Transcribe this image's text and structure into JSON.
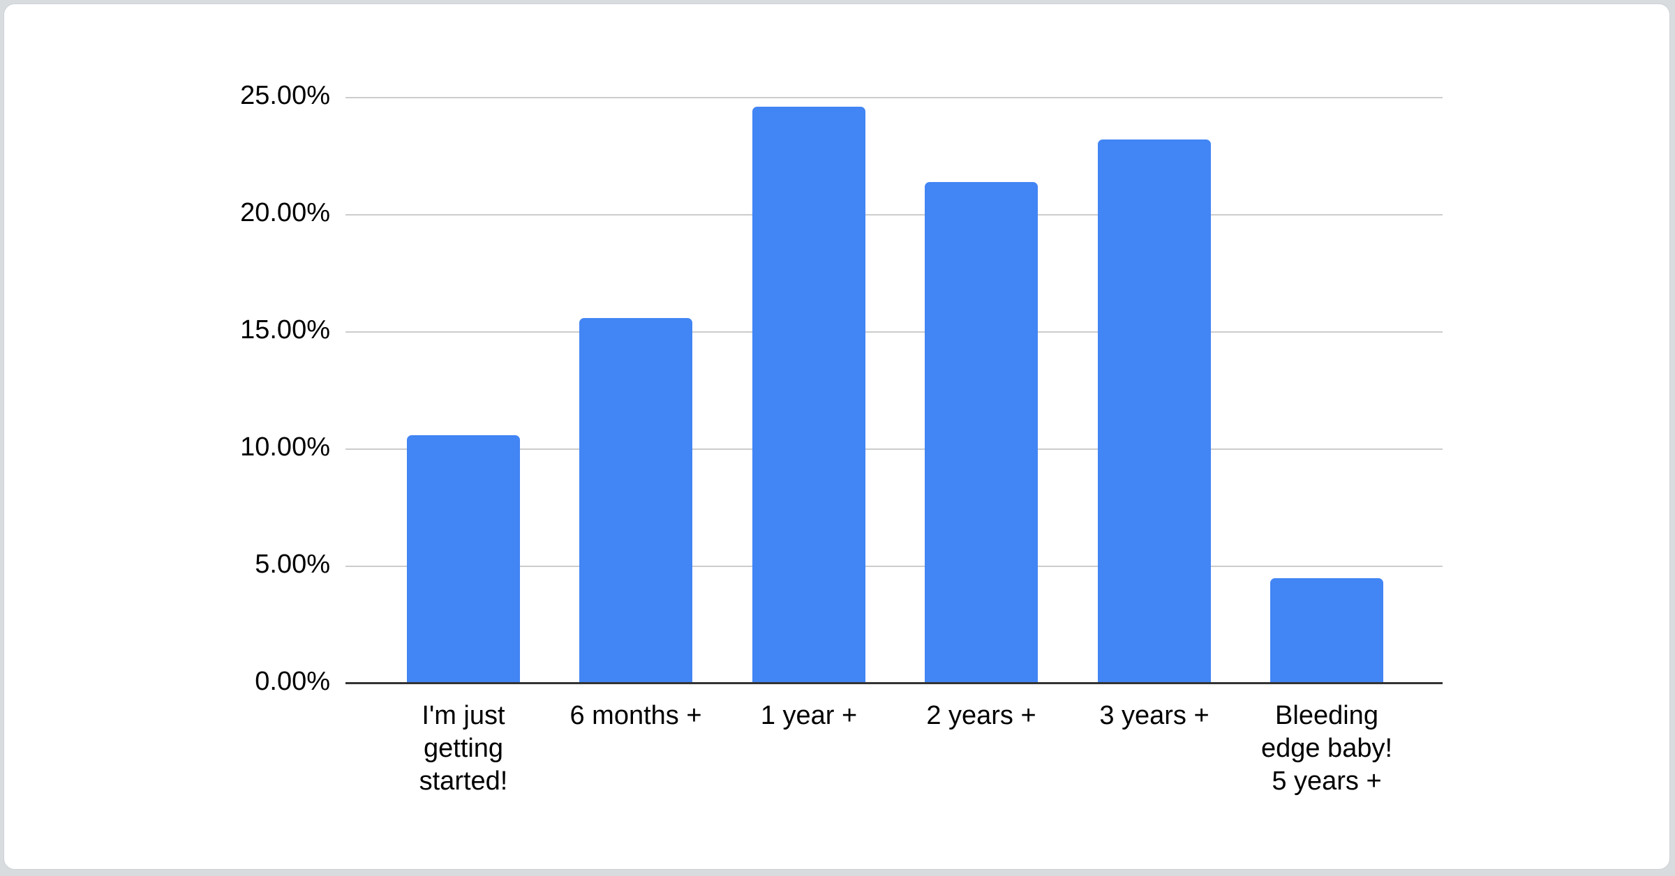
{
  "page": {
    "background_color": "#d9dcdf",
    "card_color": "#ffffff"
  },
  "chart_data": {
    "type": "bar",
    "title": "",
    "xlabel": "",
    "ylabel": "",
    "categories": [
      "I'm just\ngetting\nstarted!",
      "6 months +",
      "1 year +",
      "2 years +",
      "3 years +",
      "Bleeding\nedge baby!\n5 years +"
    ],
    "values": [
      10.6,
      15.6,
      24.6,
      21.4,
      23.2,
      4.5
    ],
    "value_unit": "percent",
    "ylim": [
      0,
      25
    ],
    "yticks": [
      0,
      5,
      10,
      15,
      20,
      25
    ],
    "ytick_labels": [
      "0.00%",
      "5.00%",
      "10.00%",
      "15.00%",
      "20.00%",
      "25.00%"
    ],
    "grid": true,
    "legend": false,
    "bar_color": "#4285f4",
    "gridline_color": "#cccccc",
    "axis_color": "#333333",
    "text_color": "#000000"
  }
}
